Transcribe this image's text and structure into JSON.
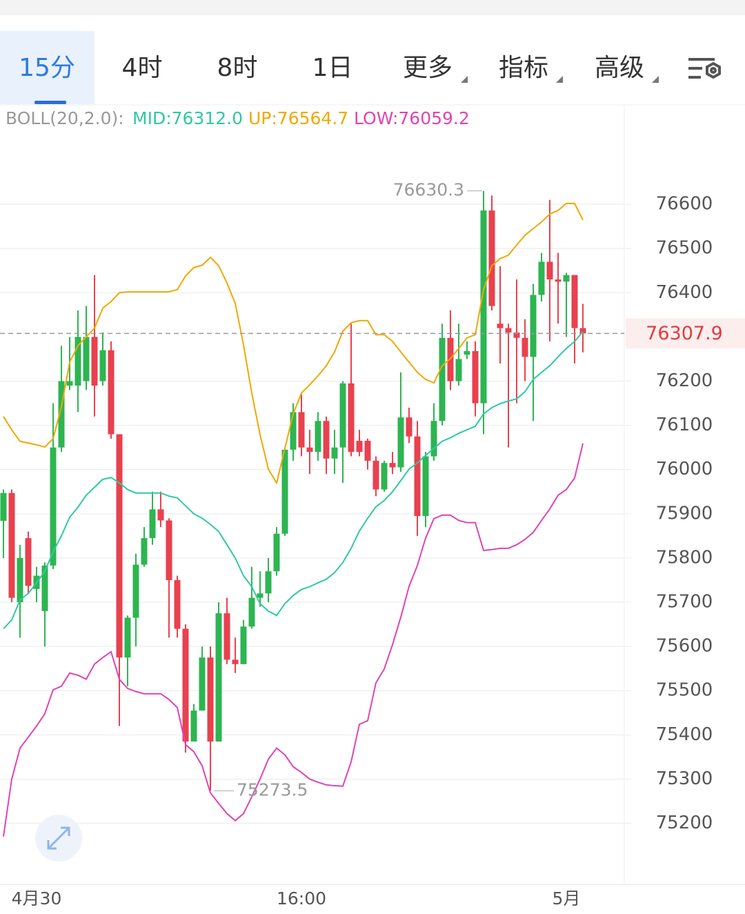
{
  "tabs": [
    "15分",
    "4时",
    "8时",
    "1日",
    "更多",
    "指标",
    "高级"
  ],
  "chart_data": {
    "type": "candlestick",
    "legend_title": "BOLL(20,2.0):",
    "categories": [
      null,
      null,
      null,
      null,
      "4月30",
      null,
      null,
      null,
      null,
      null,
      null,
      null,
      null,
      null,
      null,
      null,
      null,
      null,
      null,
      null,
      null,
      null,
      null,
      null,
      null,
      null,
      null,
      null,
      null,
      null,
      null,
      null,
      null,
      null,
      null,
      null,
      "16:00",
      null,
      null,
      null,
      null,
      null,
      null,
      null,
      null,
      null,
      null,
      null,
      null,
      null,
      null,
      null,
      null,
      null,
      null,
      null,
      null,
      null,
      null,
      null,
      null,
      null,
      null,
      null,
      null,
      null,
      null,
      null,
      "5月",
      null,
      null
    ],
    "open": [
      75884,
      75947,
      75700,
      75845,
      75730,
      75680,
      75783,
      76050,
      76190,
      76190,
      76200,
      76300,
      76200,
      76270,
      76080,
      75575,
      75665,
      75785,
      75845,
      75910,
      75885,
      75750,
      75640,
      75385,
      75455,
      75575,
      75385,
      75675,
      75570,
      75560,
      75645,
      75710,
      75720,
      75770,
      75855,
      76045,
      76130,
      76050,
      76040,
      76110,
      76025,
      76050,
      76195,
      76065,
      76065,
      76020,
      75955,
      76015,
      76005,
      76118,
      76075,
      75895,
      76030,
      76110,
      76298,
      76200,
      76260,
      76268,
      76150,
      76586,
      76330,
      76320,
      76310,
      76298,
      76255,
      76395,
      76470,
      76430,
      76425,
      76440,
      76320
    ],
    "high": [
      75955,
      75955,
      75830,
      75860,
      75780,
      75790,
      76150,
      76280,
      76300,
      76360,
      76370,
      76440,
      76310,
      76290,
      76080,
      75670,
      75810,
      75870,
      75950,
      75950,
      75890,
      75760,
      75650,
      75470,
      75600,
      75600,
      75700,
      75710,
      75620,
      75660,
      75780,
      75770,
      75800,
      75870,
      76050,
      76150,
      76170,
      76090,
      76130,
      76120,
      76090,
      76200,
      76330,
      76090,
      76070,
      76030,
      76020,
      76040,
      76220,
      76140,
      76110,
      76040,
      76150,
      76330,
      76360,
      76330,
      76290,
      76290,
      76630.3,
      76620,
      76460,
      76330,
      76430,
      76340,
      76420,
      76490,
      76610,
      76490,
      76445,
      76440,
      76375
    ],
    "low": [
      75800,
      75700,
      75620,
      75720,
      75700,
      75600,
      75775,
      76040,
      76180,
      76130,
      76180,
      76120,
      76190,
      76070,
      75420,
      75510,
      75600,
      75780,
      75830,
      75870,
      75620,
      75620,
      75360,
      75385,
      75455,
      75273.5,
      75385,
      75560,
      75540,
      75560,
      75640,
      75690,
      75700,
      75760,
      75850,
      76020,
      76030,
      75990,
      76020,
      75990,
      75990,
      75970,
      76030,
      76030,
      76000,
      75940,
      75950,
      75990,
      75995,
      76060,
      75850,
      75870,
      76020,
      76100,
      76180,
      76190,
      76250,
      76120,
      76080,
      76360,
      76240,
      76050,
      76150,
      76200,
      76110,
      76380,
      76290,
      76330,
      76300,
      76240,
      76265
    ],
    "close": [
      75947,
      75710,
      75800,
      75737,
      75760,
      75783,
      76050,
      76200,
      76200,
      76300,
      76300,
      76190,
      76270,
      76080,
      75575,
      75665,
      75785,
      75845,
      75910,
      75885,
      75750,
      75640,
      75385,
      75455,
      75575,
      75385,
      75675,
      75570,
      75560,
      75645,
      75710,
      75720,
      75770,
      75855,
      76045,
      76130,
      76050,
      76040,
      76110,
      76025,
      76050,
      76195,
      76040,
      76040,
      76020,
      75955,
      76015,
      76005,
      76118,
      76075,
      75895,
      76030,
      76110,
      76298,
      76200,
      76250,
      76268,
      76150,
      76586,
      76370,
      76320,
      76310,
      76298,
      76255,
      76395,
      76470,
      76430,
      76425,
      76440,
      76320,
      76307.9
    ],
    "up_color": "#2db552",
    "down_color": "#e8414f",
    "series": [
      {
        "name": "MID:76312.0",
        "color": "#2ec9a3",
        "values": [
          75640,
          75660,
          75705,
          75720,
          75744,
          75770,
          75814,
          75850,
          75892,
          75915,
          75942,
          75960,
          75978,
          75982,
          75970,
          75955,
          75947,
          75947,
          75947,
          75947,
          75940,
          75936,
          75918,
          75900,
          75890,
          75876,
          75860,
          75830,
          75800,
          75760,
          75735,
          75697,
          75680,
          75670,
          75697,
          75715,
          75729,
          75735,
          75744,
          75752,
          75767,
          75790,
          75822,
          75861,
          75890,
          75916,
          75930,
          75950,
          75975,
          76001,
          76015,
          76032,
          76048,
          76064,
          76072,
          76082,
          76090,
          76098,
          76126,
          76140,
          76149,
          76155,
          76160,
          76176,
          76204,
          76220,
          76235,
          76255,
          76274,
          76290,
          76312
        ]
      },
      {
        "name": "UP:76564.7",
        "color": "#f0a800",
        "values": [
          76120,
          76090,
          76064,
          76060,
          76056,
          76051,
          76070,
          76142,
          76243,
          76280,
          76300,
          76320,
          76365,
          76380,
          76400,
          76402,
          76402,
          76402,
          76402,
          76402,
          76402,
          76407,
          76438,
          76457,
          76462,
          76480,
          76461,
          76422,
          76376,
          76282,
          76173,
          76079,
          76001,
          75970,
          76048,
          76126,
          76173,
          76192,
          76212,
          76235,
          76266,
          76313,
          76332,
          76337,
          76337,
          76305,
          76305,
          76290,
          76266,
          76243,
          76220,
          76204,
          76196,
          76235,
          76251,
          76274,
          76298,
          76305,
          76407,
          76461,
          76477,
          76485,
          76508,
          76530,
          76545,
          76560,
          76578,
          76586,
          76602,
          76602,
          76564.7
        ]
      },
      {
        "name": "LOW:76059.2",
        "color": "#e043b4",
        "values": [
          75170,
          75300,
          75370,
          75395,
          75420,
          75448,
          75502,
          75510,
          75540,
          75535,
          75526,
          75560,
          75575,
          75588,
          75526,
          75505,
          75498,
          75493,
          75493,
          75493,
          75480,
          75462,
          75378,
          75362,
          75330,
          75269,
          75245,
          75222,
          75206,
          75222,
          75260,
          75300,
          75345,
          75370,
          75355,
          75328,
          75315,
          75300,
          75293,
          75287,
          75285,
          75284,
          75339,
          75424,
          75432,
          75518,
          75549,
          75604,
          75666,
          75736,
          75783,
          75845,
          75889,
          75897,
          75897,
          75885,
          75880,
          75880,
          75817,
          75819,
          75822,
          75822,
          75830,
          75842,
          75858,
          75885,
          75911,
          75942,
          75955,
          75981,
          76059.2
        ]
      }
    ],
    "last_price": 76307.9,
    "max_label": 76630.3,
    "min_label": 75273.5,
    "ylim": [
      75062,
      76828
    ],
    "yticks": [
      76600,
      76500,
      76400,
      76200,
      76100,
      76000,
      75900,
      75800,
      75700,
      75600,
      75500,
      75400,
      75300,
      75200
    ],
    "grid": true
  }
}
